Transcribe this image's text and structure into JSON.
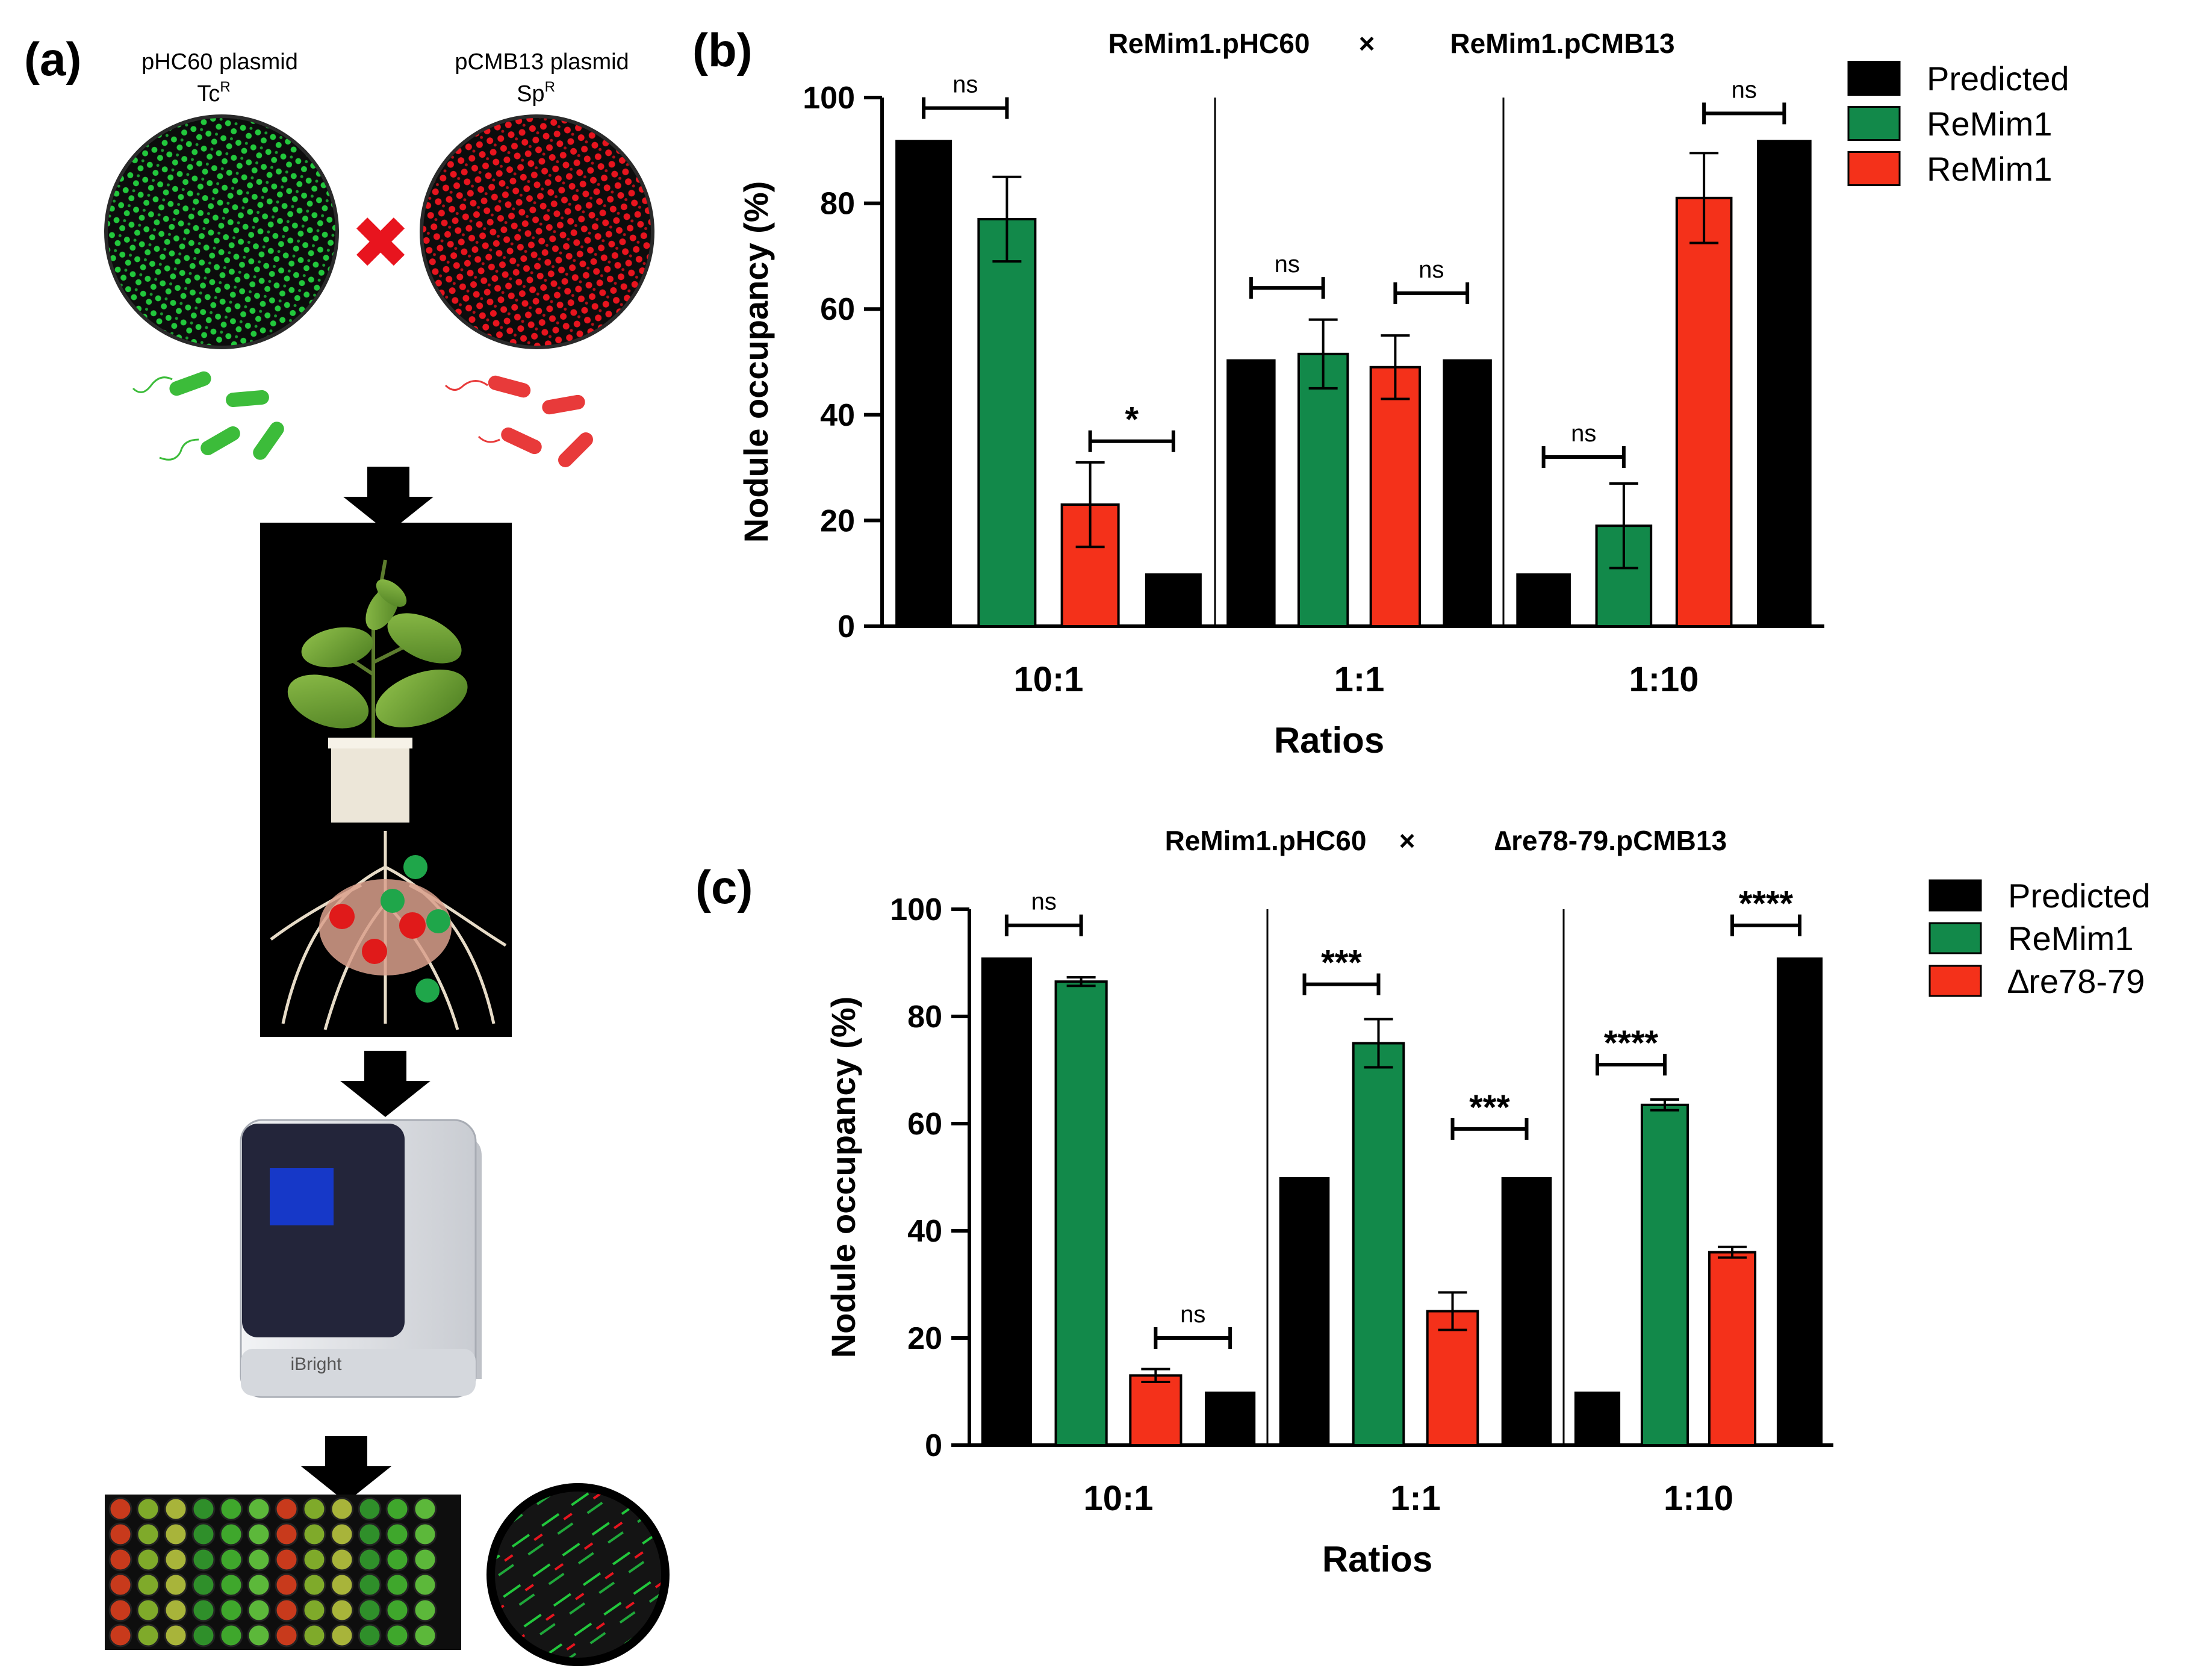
{
  "panel_a": {
    "label": "(a)",
    "plasmid_left": {
      "name": "pHC60 plasmid",
      "marker": "Tc",
      "superscript": "R"
    },
    "plasmid_right": {
      "name": "pCMB13 plasmid",
      "marker": "Sp",
      "superscript": "R"
    },
    "cross_symbol": "✖",
    "instrument_label": "iBright",
    "colors": {
      "green": "#22c83c",
      "red": "#e8141e",
      "plate_bg": "#0c0c0c"
    }
  },
  "chart_data": [
    {
      "type": "bar",
      "panel_label": "(b)",
      "title": "ReMim1.pHC60",
      "title_separator": "×",
      "title_right": "ReMim1.pCMB13",
      "xlabel": "Ratios",
      "ylabel": "Nodule occupancy  (%)",
      "ylim": [
        0,
        100
      ],
      "yticks": [
        0,
        20,
        40,
        60,
        80,
        100
      ],
      "categories": [
        "10:1",
        "1:1",
        "1:10"
      ],
      "legend_position": "top-right",
      "legend": [
        {
          "label": "Predicted",
          "color": "#000000"
        },
        {
          "label": "ReMim1",
          "color": "#12894a"
        },
        {
          "label": "ReMim1",
          "color": "#f4311a"
        }
      ],
      "groups": [
        {
          "category": "10:1",
          "bars": [
            {
              "series": "Predicted",
              "value": 92,
              "color": "#000000"
            },
            {
              "series": "green",
              "value": 77,
              "error": 8,
              "color": "#12894a"
            },
            {
              "series": "red",
              "value": 23,
              "error": 8,
              "color": "#f4311a"
            },
            {
              "series": "Predicted",
              "value": 10,
              "color": "#000000"
            }
          ]
        },
        {
          "category": "1:1",
          "bars": [
            {
              "series": "Predicted",
              "value": 50.5,
              "color": "#000000"
            },
            {
              "series": "green",
              "value": 51.5,
              "error": 6.5,
              "color": "#12894a"
            },
            {
              "series": "red",
              "value": 49,
              "error": 6,
              "color": "#f4311a"
            },
            {
              "series": "Predicted",
              "value": 50.5,
              "color": "#000000"
            }
          ]
        },
        {
          "category": "1:10",
          "bars": [
            {
              "series": "Predicted",
              "value": 10,
              "color": "#000000"
            },
            {
              "series": "green",
              "value": 19,
              "error": 8,
              "color": "#12894a"
            },
            {
              "series": "red",
              "value": 81,
              "error": 8.5,
              "color": "#f4311a"
            },
            {
              "series": "Predicted",
              "value": 92,
              "color": "#000000"
            }
          ]
        }
      ],
      "significance": [
        {
          "group": 0,
          "from": 0,
          "to": 1,
          "value": 98,
          "label": "ns"
        },
        {
          "group": 0,
          "from": 2,
          "to": 3,
          "value": 35,
          "label": "*"
        },
        {
          "group": 1,
          "from": 0,
          "to": 1,
          "value": 64,
          "label": "ns"
        },
        {
          "group": 1,
          "from": 2,
          "to": 3,
          "value": 63,
          "label": "ns"
        },
        {
          "group": 2,
          "from": 0,
          "to": 1,
          "value": 32,
          "label": "ns"
        },
        {
          "group": 2,
          "from": 2,
          "to": 3,
          "value": 97,
          "label": "ns"
        }
      ]
    },
    {
      "type": "bar",
      "panel_label": "(c)",
      "title": "ReMim1.pHC60",
      "title_separator": "×",
      "title_right": "∆re78-79.pCMB13",
      "xlabel": "Ratios",
      "ylabel": "Nodule occupancy  (%)",
      "ylim": [
        0,
        100
      ],
      "yticks": [
        0,
        20,
        40,
        60,
        80,
        100
      ],
      "categories": [
        "10:1",
        "1:1",
        "1:10"
      ],
      "legend_position": "top-right",
      "legend": [
        {
          "label": "Predicted",
          "color": "#000000"
        },
        {
          "label": "ReMim1",
          "color": "#12894a"
        },
        {
          "label": " ∆re78-79",
          "color": "#f4311a"
        }
      ],
      "groups": [
        {
          "category": "10:1",
          "bars": [
            {
              "series": "Predicted",
              "value": 91,
              "color": "#000000"
            },
            {
              "series": "ReMim1",
              "value": 86.5,
              "error": 0.8,
              "color": "#12894a"
            },
            {
              "series": "∆re78-79",
              "value": 13,
              "error": 1.2,
              "color": "#f4311a"
            },
            {
              "series": "Predicted",
              "value": 10,
              "color": "#000000"
            }
          ]
        },
        {
          "category": "1:1",
          "bars": [
            {
              "series": "Predicted",
              "value": 50,
              "color": "#000000"
            },
            {
              "series": "ReMim1",
              "value": 75,
              "error": 4.5,
              "color": "#12894a"
            },
            {
              "series": "∆re78-79",
              "value": 25,
              "error": 3.5,
              "color": "#f4311a"
            },
            {
              "series": "Predicted",
              "value": 50,
              "color": "#000000"
            }
          ]
        },
        {
          "category": "1:10",
          "bars": [
            {
              "series": "Predicted",
              "value": 10,
              "color": "#000000"
            },
            {
              "series": "ReMim1",
              "value": 63.5,
              "error": 1,
              "color": "#12894a"
            },
            {
              "series": "∆re78-79",
              "value": 36,
              "error": 1,
              "color": "#f4311a"
            },
            {
              "series": "Predicted",
              "value": 91,
              "color": "#000000"
            }
          ]
        }
      ],
      "significance": [
        {
          "group": 0,
          "from": 0,
          "to": 1,
          "value": 97,
          "label": "ns"
        },
        {
          "group": 0,
          "from": 2,
          "to": 3,
          "value": 20,
          "label": "ns"
        },
        {
          "group": 1,
          "from": 0,
          "to": 1,
          "value": 86,
          "label": "***"
        },
        {
          "group": 1,
          "from": 2,
          "to": 3,
          "value": 59,
          "label": "***"
        },
        {
          "group": 2,
          "from": 0,
          "to": 1,
          "value": 71,
          "label": "****"
        },
        {
          "group": 2,
          "from": 2,
          "to": 3,
          "value": 97,
          "label": "****"
        }
      ]
    }
  ]
}
